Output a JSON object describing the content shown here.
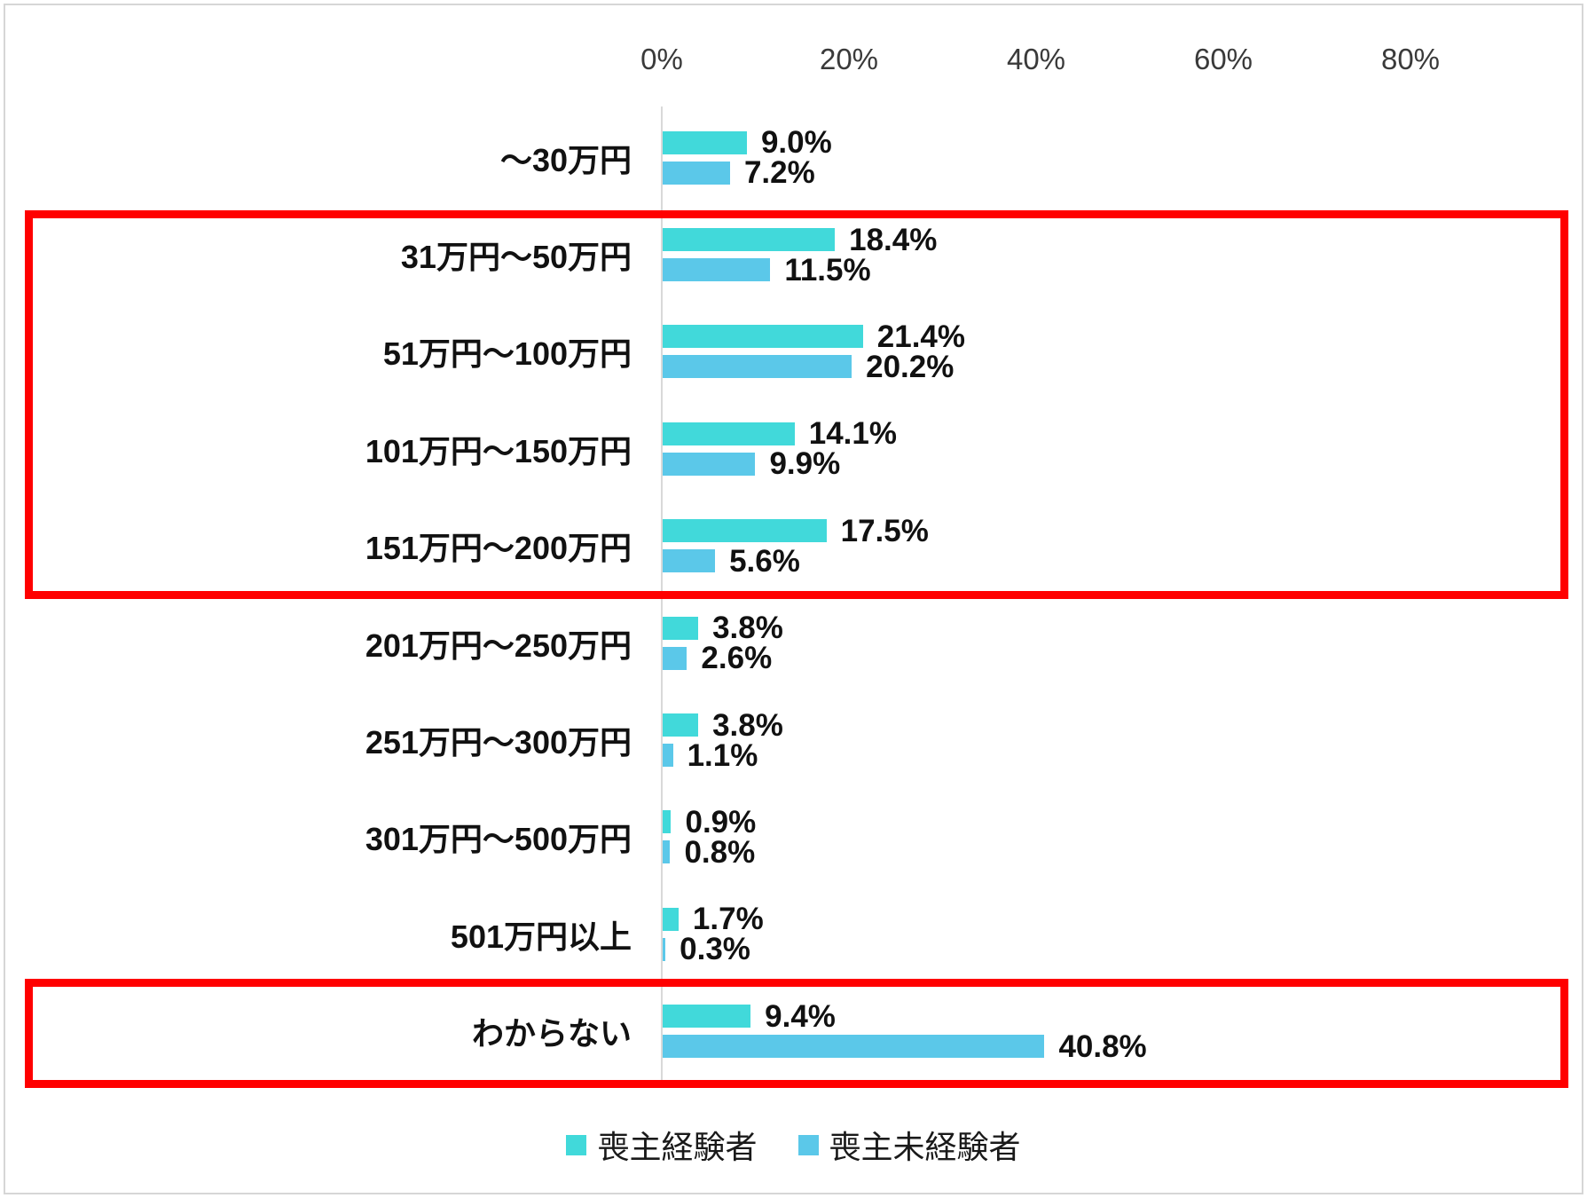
{
  "chart_data": {
    "type": "bar",
    "orientation": "horizontal",
    "title": "",
    "categories": [
      "～30万円",
      "31万円～50万円",
      "51万円～100万円",
      "101万円～150万円",
      "151万円～200万円",
      "201万円～250万円",
      "251万円～300万円",
      "301万円～500万円",
      "501万円以上",
      "わからない"
    ],
    "series": [
      {
        "name": "喪主経験者",
        "color": "#41d9da",
        "values": [
          9.0,
          18.4,
          21.4,
          14.1,
          17.5,
          3.8,
          3.8,
          0.9,
          1.7,
          9.4
        ]
      },
      {
        "name": "喪主未経験者",
        "color": "#5bc8e9",
        "values": [
          7.2,
          11.5,
          20.2,
          9.9,
          5.6,
          2.6,
          1.1,
          0.8,
          0.3,
          40.8
        ]
      }
    ],
    "value_labels": [
      [
        "9.0%",
        "18.4%",
        "21.4%",
        "14.1%",
        "17.5%",
        "3.8%",
        "3.8%",
        "0.9%",
        "1.7%",
        "9.4%"
      ],
      [
        "7.2%",
        "11.5%",
        "20.2%",
        "9.9%",
        "5.6%",
        "2.6%",
        "1.1%",
        "0.8%",
        "0.3%",
        "40.8%"
      ]
    ],
    "x_axis": {
      "tick_labels": [
        "0%",
        "20%",
        "40%",
        "60%",
        "80%"
      ],
      "min": 0,
      "max": 80,
      "unit": "%",
      "position": "top"
    },
    "grid": false,
    "legend": {
      "position": "bottom-center",
      "entries": [
        "喪主経験者",
        "喪主未経験者"
      ]
    },
    "annotations": {
      "highlight_color": "#ff0000",
      "highlight_boxes": [
        {
          "from_category": "31万円～50万円",
          "to_category": "151万円～200万円"
        },
        {
          "from_category": "わからない",
          "to_category": "わからない"
        }
      ]
    }
  }
}
